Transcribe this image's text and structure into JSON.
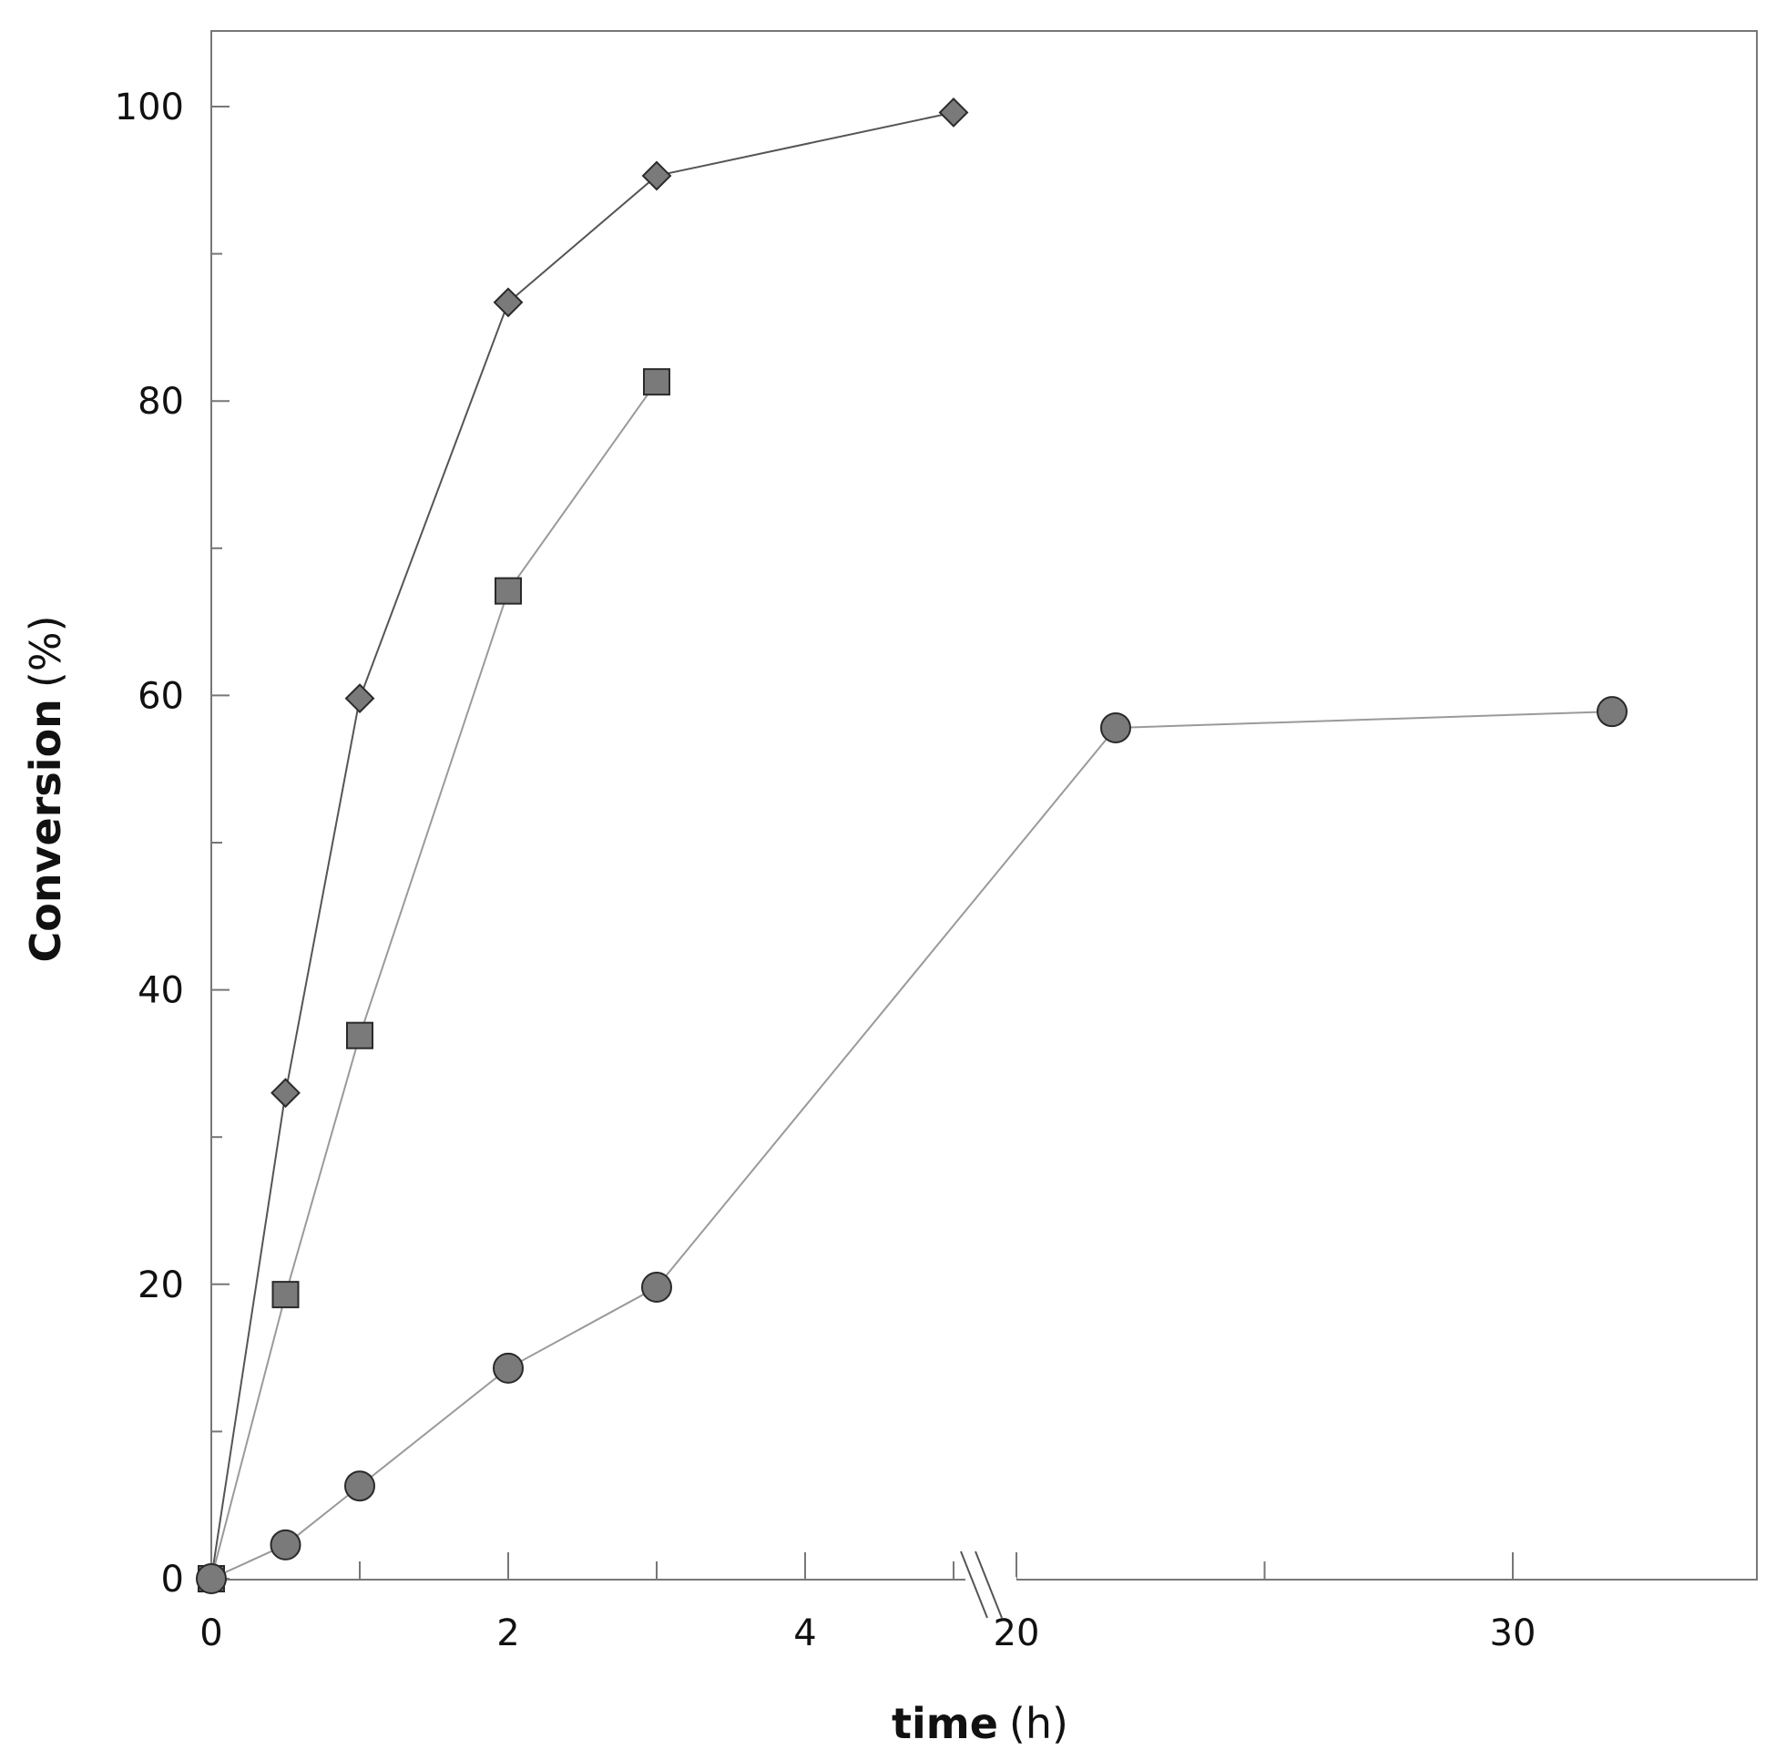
{
  "chart_data": {
    "type": "line",
    "xlabel": {
      "bold": "time",
      "unit": "(h)"
    },
    "ylabel": {
      "bold": "Conversion",
      "unit": "(%)"
    },
    "ylim": [
      0,
      105
    ],
    "x_axis_break": {
      "segments": [
        {
          "xlim": [
            0,
            5.1
          ]
        },
        {
          "xlim": [
            18.6,
            36
          ]
        }
      ]
    },
    "x_ticks_major": [
      0,
      2,
      4,
      20,
      30
    ],
    "x_ticks_labels": [
      "0",
      "2",
      "4",
      "20",
      "30"
    ],
    "x_ticks_minor": [
      1,
      3,
      5,
      25
    ],
    "y_ticks_major": [
      0,
      20,
      40,
      60,
      80,
      100
    ],
    "y_ticks_labels": [
      "0",
      "20",
      "40",
      "60",
      "80",
      "100"
    ],
    "y_ticks_minor": [
      10,
      30,
      50,
      70,
      90
    ],
    "grid": false,
    "legend": "none",
    "series": [
      {
        "marker": "diamond",
        "line_color": "#555555",
        "marker_fill": "#7a7a7a",
        "points": [
          {
            "x": 0,
            "y": 0
          },
          {
            "x": 0.5,
            "y": 33
          },
          {
            "x": 1,
            "y": 59.8
          },
          {
            "x": 2,
            "y": 86.7
          },
          {
            "x": 3,
            "y": 95.3
          },
          {
            "x": 5,
            "y": 99.6
          }
        ]
      },
      {
        "marker": "square",
        "line_color": "#9a9a9a",
        "marker_fill": "#7a7a7a",
        "points": [
          {
            "x": 0,
            "y": 0
          },
          {
            "x": 0.5,
            "y": 19.3
          },
          {
            "x": 1,
            "y": 36.9
          },
          {
            "x": 2,
            "y": 67.1
          },
          {
            "x": 3,
            "y": 81.3
          }
        ]
      },
      {
        "marker": "circle",
        "line_color": "#9a9a9a",
        "marker_fill": "#7a7a7a",
        "points": [
          {
            "x": 0,
            "y": 0
          },
          {
            "x": 0.5,
            "y": 2.3
          },
          {
            "x": 1,
            "y": 6.3
          },
          {
            "x": 2,
            "y": 14.3
          },
          {
            "x": 3,
            "y": 19.8
          },
          {
            "x": 22,
            "y": 57.8
          },
          {
            "x": 32,
            "y": 58.9
          }
        ]
      }
    ]
  }
}
